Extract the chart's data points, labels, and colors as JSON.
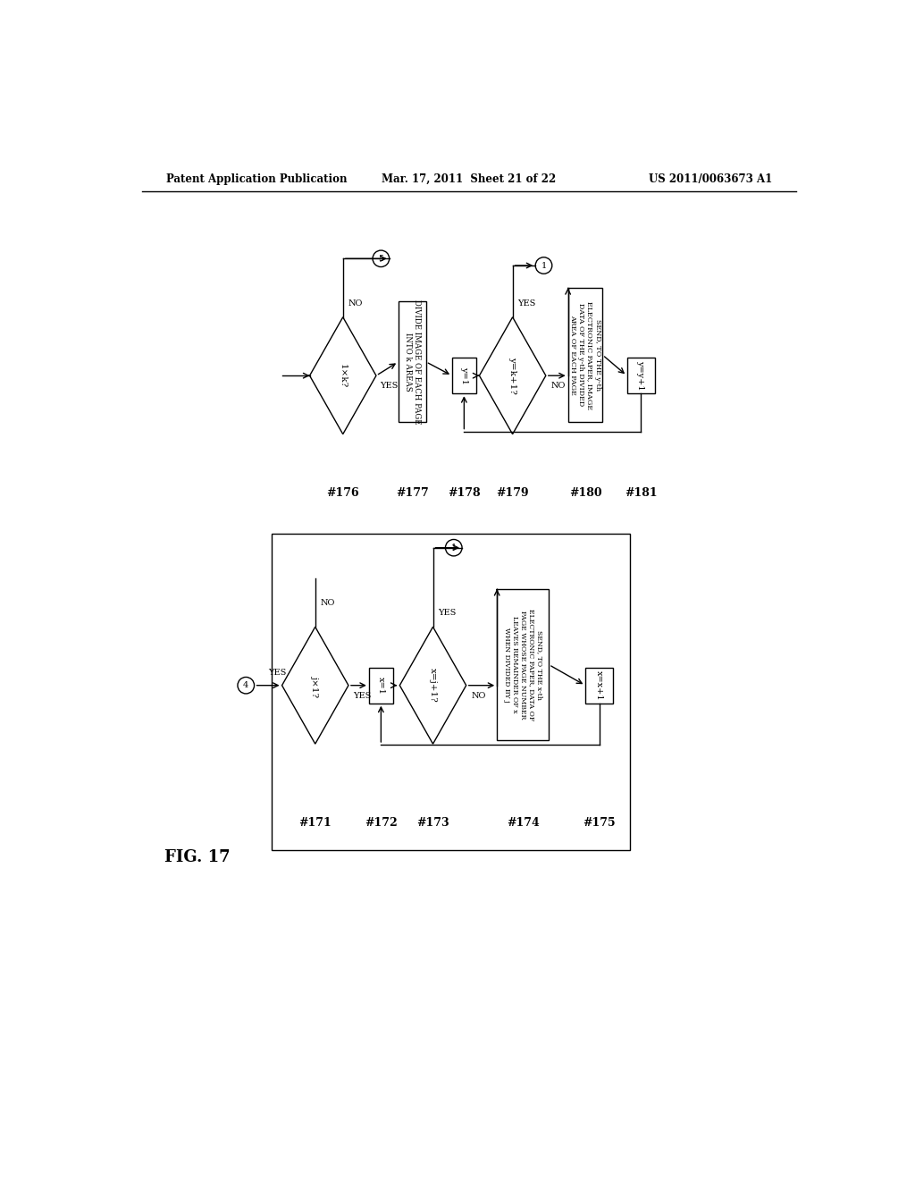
{
  "title_left": "Patent Application Publication",
  "title_mid": "Mar. 17, 2011  Sheet 21 of 22",
  "title_right": "US 2011/0063673 A1",
  "fig_label": "FIG. 17",
  "bg_color": "#ffffff",
  "line_color": "#000000"
}
